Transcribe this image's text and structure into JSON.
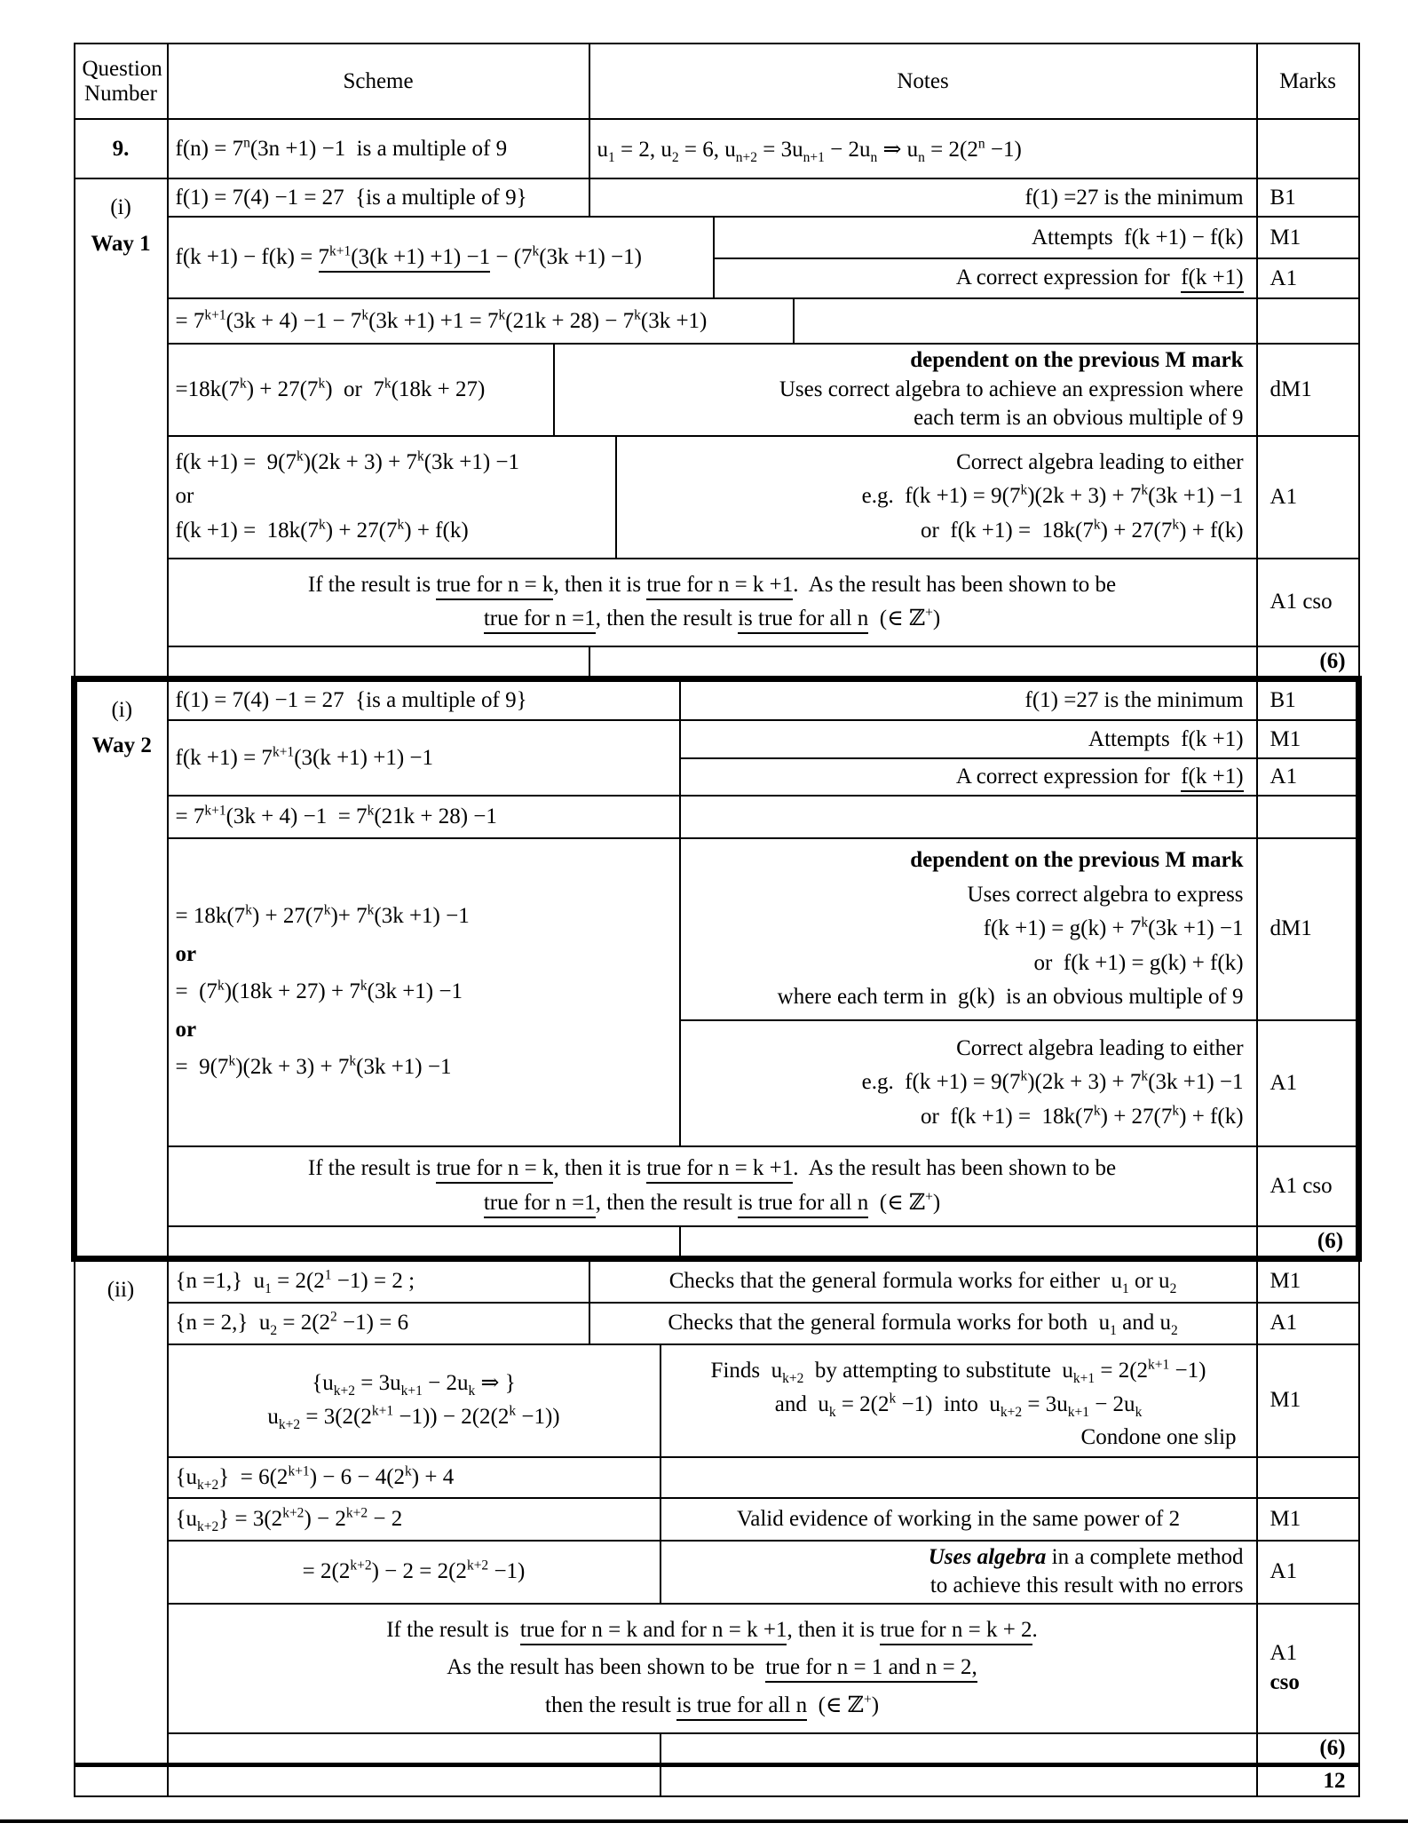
{
  "header": {
    "question_number": "Question Number",
    "scheme": "Scheme",
    "notes": "Notes",
    "marks": "Marks"
  },
  "q9": {
    "number": "9.",
    "scheme": "f(n) = 7^{n}(3n +1) −1  is a multiple of 9",
    "note": "u_{1} = 2, u_{2} = 6, u_{n+2} = 3u_{n+1} − 2u_{n} ⇒ u_{n} = 2(2^{n} −1)"
  },
  "way1": {
    "part_label": [
      "(i)",
      [
        {
          "t": "Way 1",
          "b": 1
        }
      ]
    ],
    "b1_scheme": "f(1) = 7(4) −1 = 27  {is a multiple of 9}",
    "b1_note": "f(1) =27 is the minimum",
    "b1_mark": "B1",
    "m1_scheme": [
      [
        {
          "t": "f(k +1) − f(k) = "
        },
        {
          "t": "7^{k+1}(3(k +1) +1) −1",
          "u": 1
        },
        {
          "t": " − (7^{k}(3k +1) −1)"
        }
      ]
    ],
    "m1_note": "Attempts  f(k +1) − f(k)",
    "m1_mark": "M1",
    "a1_note": [
      [
        {
          "t": "A correct expression for  "
        },
        {
          "t": "f(k +1)",
          "u": 1
        }
      ]
    ],
    "a1_mark": "A1",
    "eq2": "= 7^{k+1}(3k + 4) −1 − 7^{k}(3k +1) +1 = 7^{k}(21k + 28) − 7^{k}(3k +1)",
    "dm1_scheme": "=18k(7^{k}) + 27(7^{k})   or   7^{k}(18k + 27)",
    "dm1_note": [
      [
        {
          "t": "dependent on the previous M mark",
          "b": 1
        }
      ],
      "Uses correct algebra to achieve an expression where",
      "each term is an obvious multiple of 9"
    ],
    "dm1_mark": "dM1",
    "alg_scheme": [
      "f(k +1) =  9(7^{k})(2k + 3) + 7^{k}(3k +1) −1",
      "or",
      "f(k +1) =  18k(7^{k}) + 27(7^{k}) + f(k)"
    ],
    "alg_note": [
      "Correct algebra leading to either",
      "e.g.  f(k +1) = 9(7^{k})(2k + 3) + 7^{k}(3k +1) −1",
      "or  f(k +1) =  18k(7^{k}) + 27(7^{k}) + f(k)"
    ],
    "alg_mark": "A1",
    "cso": [
      [
        {
          "t": "If the result is "
        },
        {
          "t": "true for n = k",
          "u": 1
        },
        {
          "t": ", then it is "
        },
        {
          "t": "true for n = k +1",
          "u": 1
        },
        {
          "t": ".   As the result has been shown to be"
        }
      ],
      [
        {
          "t": "true for n =1",
          "u": 1
        },
        {
          "t": ", then the result "
        },
        {
          "t": "is true for all n",
          "u": 1
        },
        {
          "t": "   (∈ ℤ^{+})"
        }
      ]
    ],
    "cso_mark": "A1 cso",
    "subtotal": "(6)"
  },
  "way2": {
    "part_label": [
      "(i)",
      [
        {
          "t": "Way 2",
          "b": 1
        }
      ]
    ],
    "b1_scheme": "f(1) = 7(4) −1 = 27  {is a multiple of 9}",
    "b1_note": "f(1) =27 is the minimum",
    "b1_mark": "B1",
    "m1_scheme": "f(k +1) = 7^{k+1}(3(k +1) +1) −1",
    "m1_note": "Attempts  f(k +1)",
    "m1_mark": "M1",
    "a1_note": [
      [
        {
          "t": "A correct expression for  "
        },
        {
          "t": "f(k +1)",
          "u": 1
        }
      ]
    ],
    "a1_mark": "A1",
    "eq2": "= 7^{k+1}(3k + 4) −1  = 7^{k}(21k + 28) −1",
    "dm1_scheme": [
      "= 18k(7^{k}) + 27(7^{k})+ 7^{k}(3k +1) −1",
      [
        {
          "t": "or",
          "b": 1
        }
      ],
      "=  (7^{k})(18k + 27) + 7^{k}(3k +1) −1",
      [
        {
          "t": "or",
          "b": 1
        }
      ],
      "=  9(7^{k})(2k + 3) + 7^{k}(3k +1) −1"
    ],
    "dm1_note": [
      [
        {
          "t": "dependent on the previous M mark",
          "b": 1
        }
      ],
      "Uses correct algebra to express",
      "f(k +1) = g(k) + 7^{k}(3k +1) −1",
      "or  f(k +1) = g(k) + f(k)",
      "where each term in  g(k)  is an obvious multiple of 9"
    ],
    "dm1_mark": "dM1",
    "alg_note": [
      "Correct algebra leading to either",
      "e.g.  f(k +1) = 9(7^{k})(2k + 3) + 7^{k}(3k +1) −1",
      "or  f(k +1) =  18k(7^{k}) + 27(7^{k}) + f(k)"
    ],
    "alg_mark": "A1",
    "cso": [
      [
        {
          "t": "If the result is "
        },
        {
          "t": "true for n = k",
          "u": 1
        },
        {
          "t": ", then it is "
        },
        {
          "t": "true for n = k +1",
          "u": 1
        },
        {
          "t": ".   As the result has been shown to be"
        }
      ],
      [
        {
          "t": "true for n =1",
          "u": 1
        },
        {
          "t": ", then the result "
        },
        {
          "t": "is true for all n",
          "u": 1
        },
        {
          "t": "   (∈ ℤ^{+})"
        }
      ]
    ],
    "cso_mark": "A1 cso",
    "subtotal": "(6)"
  },
  "part2": {
    "part_label": [
      "(ii)"
    ],
    "m1_scheme": "{n =1,}  u_{1} = 2(2^{1} −1) = 2 ;",
    "m1_note": "Checks that the general formula works for either  u_{1} or u_{2}",
    "m1_mark": "M1",
    "a1_scheme": "{n = 2,}  u_{2} = 2(2^{2} −1) = 6",
    "a1_note": "Checks that the general formula works for both  u_{1} and u_{2}",
    "a1_mark": "A1",
    "sub_scheme": [
      "{u_{k+2} = 3u_{k+1} − 2u_{k} ⇒ }",
      "u_{k+2} = 3(2(2^{k+1} −1)) − 2(2(2^{k} −1))"
    ],
    "sub_note": [
      "Finds  u_{k+2}  by attempting to substitute  u_{k+1} = 2(2^{k+1} −1)",
      "and  u_{k} = 2(2^{k} −1)  into  u_{k+2} = 3u_{k+1} − 2u_{k}"
    ],
    "sub_note_footer": "Condone one slip",
    "sub_mark": "M1",
    "eq1": "{u_{k+2}}  = 6(2^{k+1}) − 6 − 4(2^{k}) + 4",
    "power_scheme": "{u_{k+2}} = 3(2^{k+2}) − 2^{k+2} − 2",
    "power_note": "Valid evidence of working in the same power of 2",
    "power_mark": "M1",
    "alg2_scheme": "= 2(2^{k+2}) − 2 = 2(2^{k+2} −1)",
    "alg2_note": [
      [
        {
          "t": "Uses algebra",
          "b": 1,
          "i": 1
        },
        {
          "t": " in a complete method"
        }
      ],
      "to achieve this result with no errors"
    ],
    "alg2_mark": "A1",
    "cso": [
      [
        {
          "t": "If the result is  "
        },
        {
          "t": "true for n = k and for n = k +1",
          "u": 1
        },
        {
          "t": ", then it is "
        },
        {
          "t": "true for n = k + 2",
          "u": 1
        },
        {
          "t": "."
        }
      ],
      [
        {
          "t": "As the result has been shown to be  "
        },
        {
          "t": "true for n = 1 and n = 2,",
          "u": 1
        }
      ],
      [
        {
          "t": "then the result "
        },
        {
          "t": "is true for all n",
          "u": 1
        },
        {
          "t": "  (∈ ℤ^{+})"
        }
      ]
    ],
    "cso_mark": [
      "A1",
      [
        {
          "t": "cso",
          "b": 1
        }
      ]
    ],
    "subtotal": "(6)"
  },
  "total": "12"
}
